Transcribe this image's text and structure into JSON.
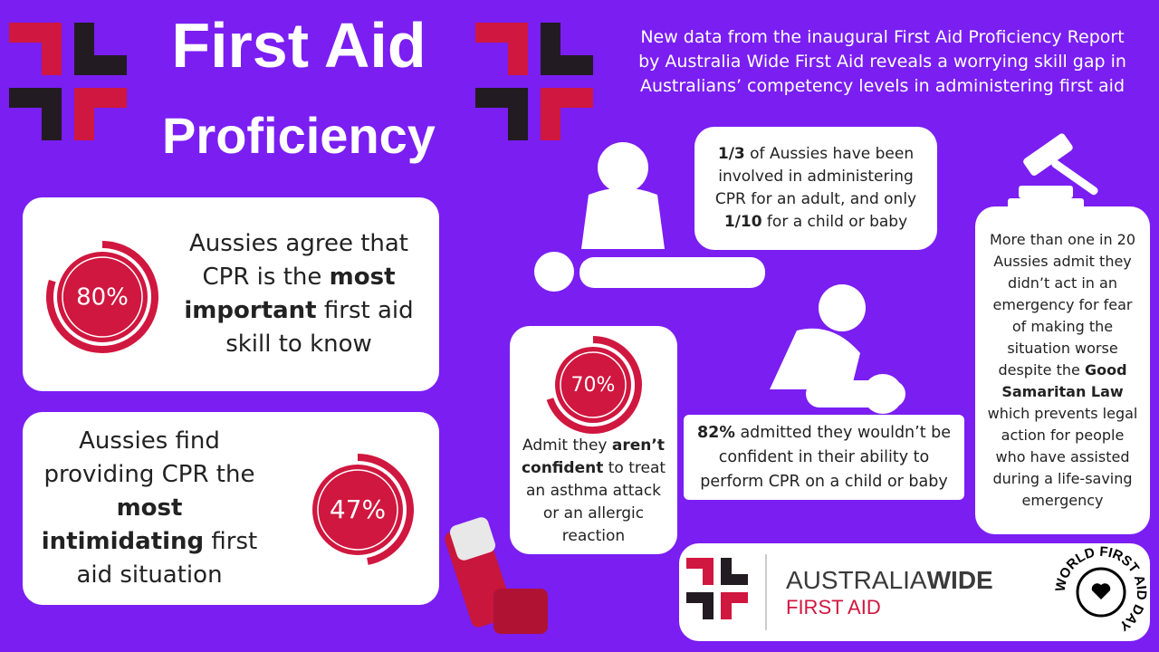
{
  "header": {
    "title": "First Aid",
    "subtitle": "Proficiency",
    "intro": [
      "New data from the inaugural First Aid Proficiency Report",
      "by Australia Wide First Aid reveals a worrying skill gap in",
      "Australians’ competency levels in  administering first aid"
    ]
  },
  "stats": [
    {
      "value": 80,
      "label": "80%",
      "text": [
        "Aussies agree that CPR is the ",
        "most important",
        " first aid skill to know"
      ]
    },
    {
      "value": 47,
      "label": "47%",
      "text": [
        "Aussies find providing CPR the ",
        "most intimidating",
        " first aid situation"
      ]
    },
    {
      "value": 70,
      "label": "70%",
      "text": [
        "Admit they ",
        "aren’t confident",
        " to treat an asthma attack or an allergic reaction"
      ]
    }
  ],
  "facts": [
    {
      "text": [
        "1/3",
        " of Aussies have been involved in administering CPR for an adult, and only ",
        "1/10",
        " for a child or baby"
      ]
    },
    {
      "text": [
        "82%",
        " admitted they wouldn’t be confident in their ability to perform CPR on a child or baby"
      ]
    },
    {
      "text": [
        "More than one in 20 Aussies admit they didn’t act in an emergency for fear of making the situation worse despite the ",
        "Good Samaritan Law",
        " which prevents legal action for people who have assisted during a life-saving emergency"
      ]
    }
  ],
  "logo": {
    "name_light": "AUSTRALIA",
    "name_bold": "WIDE",
    "tagline": "FIRST AID",
    "badge": "WORLD FIRST AID DAY"
  }
}
